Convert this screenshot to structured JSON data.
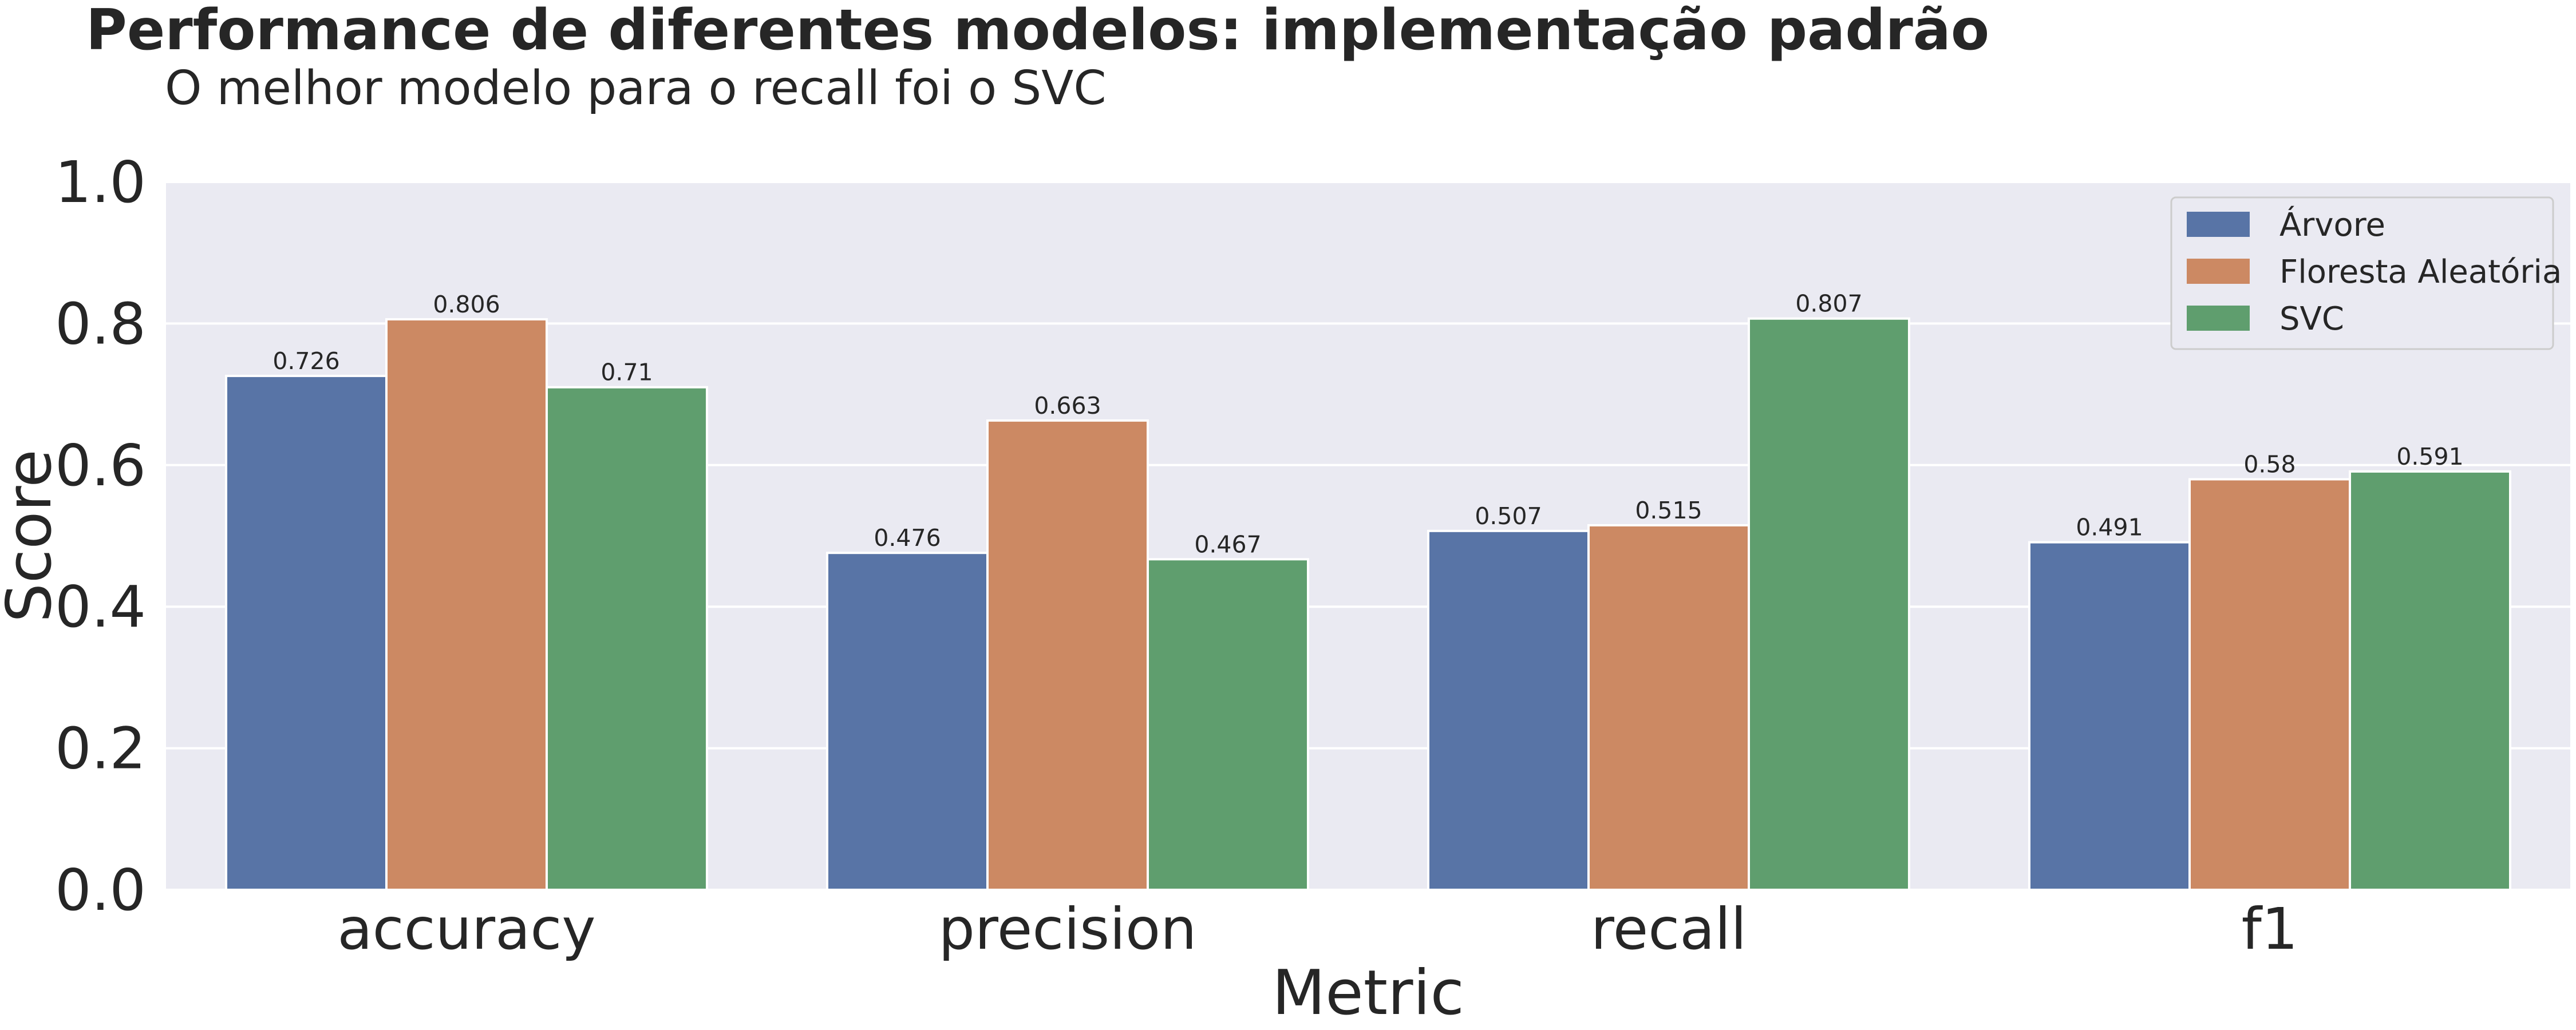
{
  "title": "Performance de diferentes modelos: implementação padrão",
  "subtitle": "O melhor modelo para o recall foi o SVC",
  "chart_data": {
    "type": "bar",
    "xlabel": "Metric",
    "ylabel": "Score",
    "ylim": [
      0,
      1
    ],
    "yticks": [
      "0.0",
      "0.2",
      "0.4",
      "0.6",
      "0.8",
      "1.0"
    ],
    "categories": [
      "accuracy",
      "precision",
      "recall",
      "f1"
    ],
    "series": [
      {
        "name": "Árvore",
        "color": "#5874a6",
        "values": [
          0.726,
          0.476,
          0.507,
          0.491
        ],
        "labels": [
          "0.726",
          "0.476",
          "0.507",
          "0.491"
        ]
      },
      {
        "name": "Floresta Aleatória",
        "color": "#cc8963",
        "values": [
          0.806,
          0.663,
          0.515,
          0.58
        ],
        "labels": [
          "0.806",
          "0.663",
          "0.515",
          "0.58"
        ]
      },
      {
        "name": "SVC",
        "color": "#5f9e6e",
        "values": [
          0.71,
          0.467,
          0.807,
          0.591
        ],
        "labels": [
          "0.71",
          "0.467",
          "0.807",
          "0.591"
        ]
      }
    ],
    "grid": true,
    "legend_position": "top-right",
    "plot_background": "#eaeaf2"
  }
}
